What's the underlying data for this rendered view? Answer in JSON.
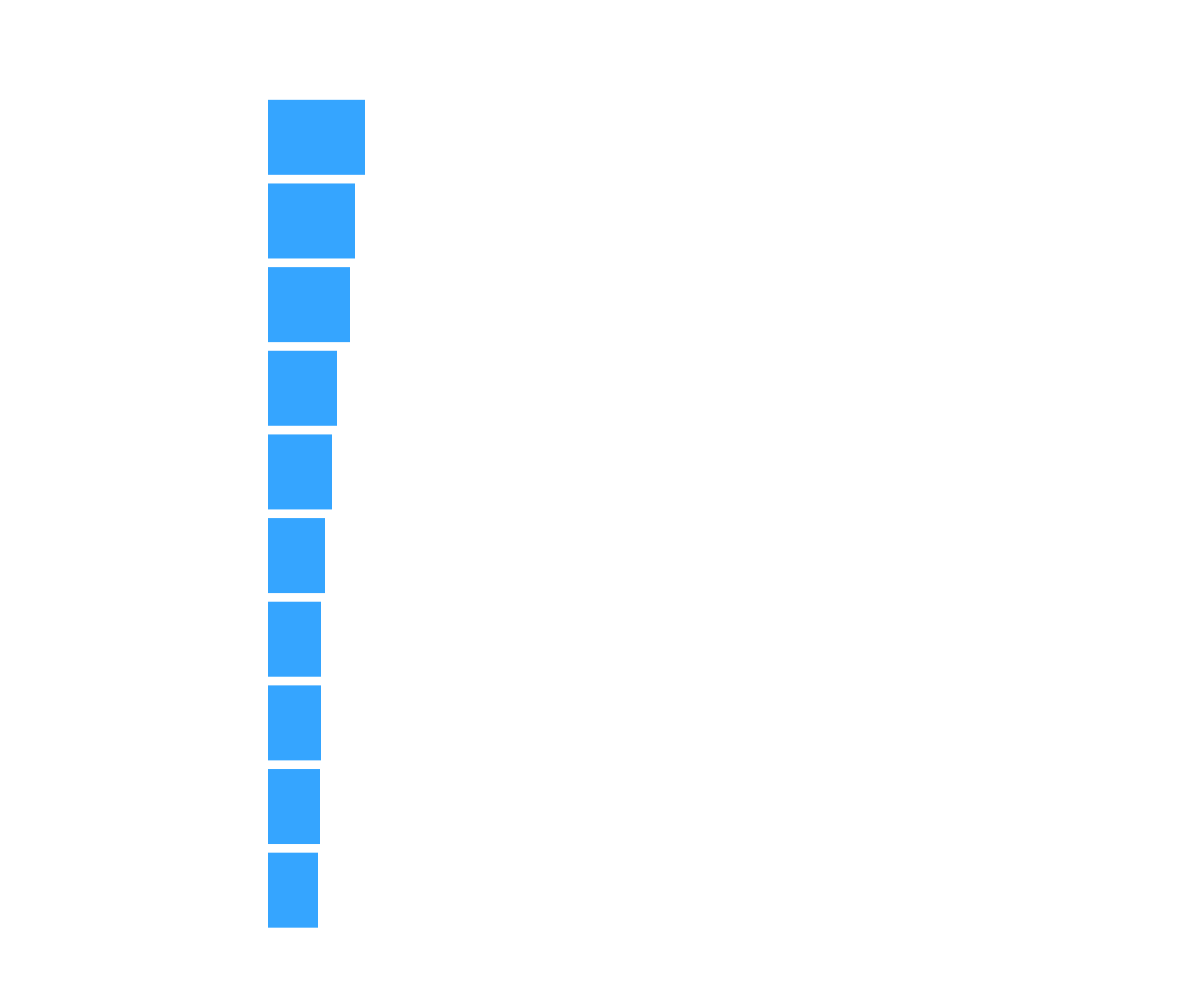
{
  "chart_data": {
    "type": "barh",
    "categories": [
      null,
      null,
      null,
      null,
      null,
      null,
      null,
      null,
      null,
      null
    ],
    "values": [
      97,
      87,
      82,
      69,
      64,
      57,
      53,
      53,
      52,
      50
    ],
    "color": "#35a5ff",
    "xlim": [
      0,
      832
    ]
  }
}
